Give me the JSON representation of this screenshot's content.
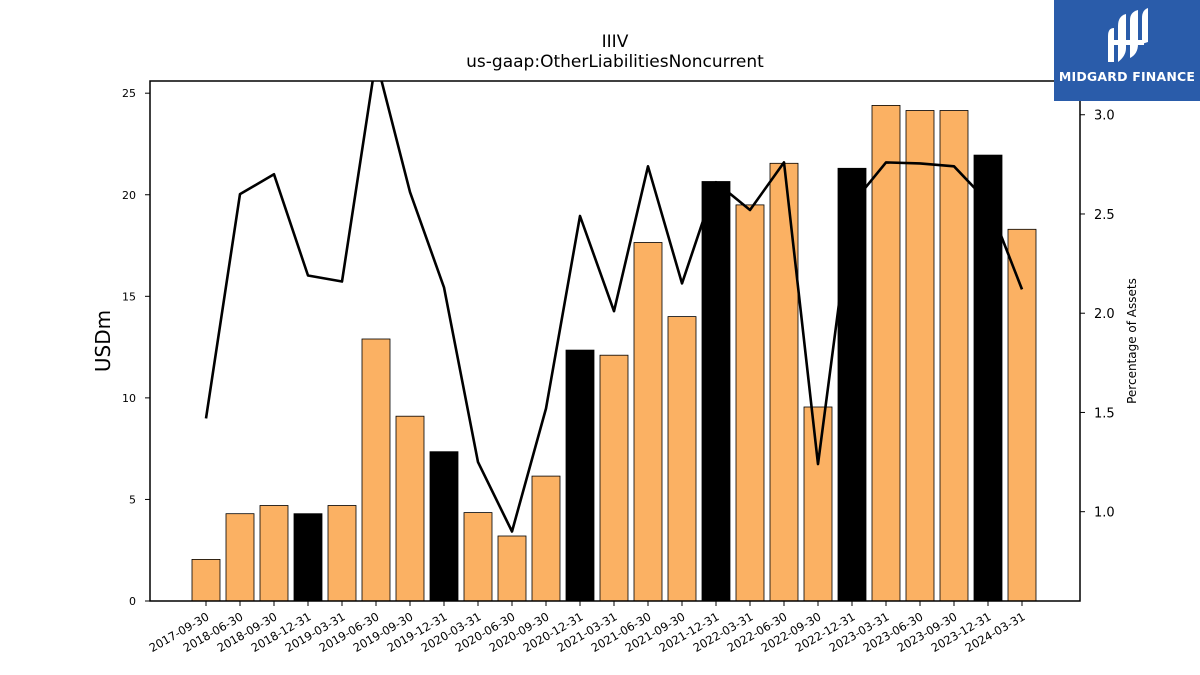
{
  "header": {
    "ticker": "IIIV",
    "metric": "us-gaap:OtherLiabilitiesNoncurrent"
  },
  "logo": {
    "text": "MIDGARD FINANCE",
    "bg": "#2a5caa"
  },
  "chart_data": {
    "type": "bar",
    "title": "IIIV",
    "subtitle": "us-gaap:OtherLiabilitiesNoncurrent",
    "ylabel": "USDm",
    "y2label": "Percentage of Assets",
    "ylim": [
      0,
      25.6
    ],
    "y2lim": [
      0.55,
      3.17
    ],
    "yticks": [
      0,
      5,
      10,
      15,
      20,
      25
    ],
    "y2ticks": [
      1.0,
      1.5,
      2.0,
      2.5,
      3.0
    ],
    "y2ticklabels": [
      "1.0",
      "1.5",
      "2.0",
      "2.5",
      "3.0"
    ],
    "categories": [
      "2017-09-30",
      "2018-06-30",
      "2018-09-30",
      "2018-12-31",
      "2019-03-31",
      "2019-06-30",
      "2019-09-30",
      "2019-12-31",
      "2020-03-31",
      "2020-06-30",
      "2020-09-30",
      "2020-12-31",
      "2021-03-31",
      "2021-06-30",
      "2021-09-30",
      "2021-12-31",
      "2022-03-31",
      "2022-06-30",
      "2022-09-30",
      "2022-12-31",
      "2023-03-31",
      "2023-06-30",
      "2023-09-30",
      "2023-12-31",
      "2024-03-31"
    ],
    "series": [
      {
        "type": "bar",
        "axis": "left",
        "values": [
          2.05,
          4.3,
          4.7,
          4.3,
          4.7,
          12.9,
          9.1,
          7.35,
          4.35,
          3.2,
          6.15,
          12.35,
          12.1,
          17.65,
          14.0,
          20.65,
          19.5,
          21.55,
          9.55,
          21.3,
          24.4,
          24.15,
          24.15,
          21.95,
          18.3
        ]
      },
      {
        "type": "line",
        "axis": "right",
        "color": "#000000",
        "values": [
          1.47,
          2.6,
          2.7,
          2.19,
          2.16,
          3.28,
          2.61,
          2.13,
          1.25,
          0.9,
          1.52,
          2.49,
          2.01,
          2.74,
          2.15,
          2.66,
          2.52,
          2.76,
          1.24,
          2.55,
          2.76,
          2.755,
          2.74,
          2.56,
          2.12
        ]
      }
    ],
    "year_end_color": "#000000",
    "bar_color": "#fbb163",
    "grid": false,
    "legend": "none"
  }
}
